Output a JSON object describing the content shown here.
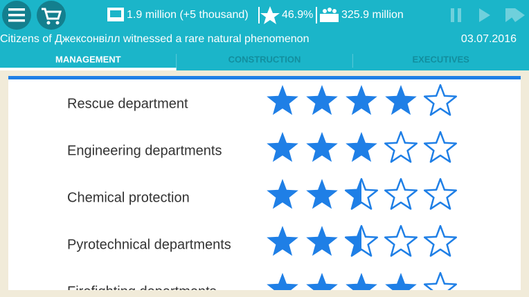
{
  "header": {
    "money": "1.9 million (+5 thousand)",
    "rating": "46.9%",
    "population": "325.9 million",
    "news": "Citizens of Джексонвілл witnessed a rare natural phenomenon",
    "date": "03.07.2016"
  },
  "tabs": [
    "MANAGEMENT",
    "CONSTRUCTION",
    "EXECUTIVES"
  ],
  "rows": [
    {
      "label": "Rescue department",
      "rating": 4
    },
    {
      "label": "Engineering departments",
      "rating": 3
    },
    {
      "label": "Chemical protection",
      "rating": 2.5
    },
    {
      "label": "Pyrotechnical departments",
      "rating": 2.5
    },
    {
      "label": "Firefighting departments",
      "rating": 4
    }
  ]
}
